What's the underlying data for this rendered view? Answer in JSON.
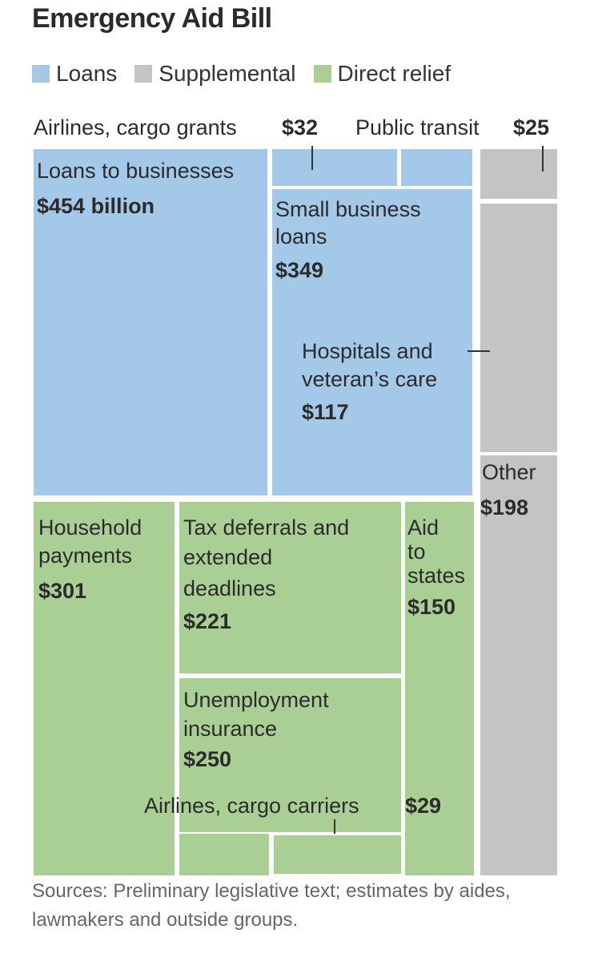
{
  "title": "Emergency Aid Bill",
  "legend": [
    {
      "label": "Loans",
      "color": "#a3c8e8"
    },
    {
      "label": "Supplemental",
      "color": "#c4c4c4"
    },
    {
      "label": "Direct relief",
      "color": "#a9cf95"
    }
  ],
  "chart_data": {
    "type": "treemap",
    "title": "Emergency Aid Bill",
    "unit": "billion",
    "items": [
      {
        "name": "Loans to businesses",
        "value_label": "$454 billion",
        "value": 454,
        "group": "Loans"
      },
      {
        "name": "Airlines, cargo grants",
        "value_label": "$32",
        "value": 32,
        "group": "Loans"
      },
      {
        "name": "Small business loans",
        "value_label": "$349",
        "value": 349,
        "group": "Loans"
      },
      {
        "name": "Hospitals and veteran's care",
        "value_label": "$117",
        "value": 117,
        "group": "Supplemental"
      },
      {
        "name": "Public transit",
        "value_label": "$25",
        "value": 25,
        "group": "Supplemental"
      },
      {
        "name": "Other",
        "value_label": "$198",
        "value": 198,
        "group": "Supplemental"
      },
      {
        "name": "Household payments",
        "value_label": "$301",
        "value": 301,
        "group": "Direct relief"
      },
      {
        "name": "Tax deferrals and extended deadlines",
        "value_label": "$221",
        "value": 221,
        "group": "Direct relief"
      },
      {
        "name": "Aid to states",
        "value_label": "$150",
        "value": 150,
        "group": "Direct relief"
      },
      {
        "name": "Unemployment insurance",
        "value_label": "$250",
        "value": 250,
        "group": "Direct relief"
      },
      {
        "name": "Airlines, cargo carriers",
        "value_label": "$29",
        "value": 29,
        "group": "Direct relief"
      }
    ]
  },
  "labels": {
    "loans_businesses": [
      "Loans to businesses"
    ],
    "small_business": [
      "Small business",
      "loans"
    ],
    "hospitals": [
      "Hospitals and",
      "veteran’s care"
    ],
    "other": [
      "Other"
    ],
    "household": [
      "Household",
      "payments"
    ],
    "tax": [
      "Tax deferrals and",
      "extended",
      "deadlines"
    ],
    "aid_states": [
      "Aid",
      "to",
      "states"
    ],
    "unemployment": [
      "Unemployment",
      "insurance"
    ],
    "airlines_grants": "Airlines, cargo grants",
    "public_transit": "Public transit",
    "airlines_carriers": "Airlines, cargo carriers"
  },
  "source": "Sources: Preliminary legislative text; estimates by aides, lawmakers and outside groups."
}
